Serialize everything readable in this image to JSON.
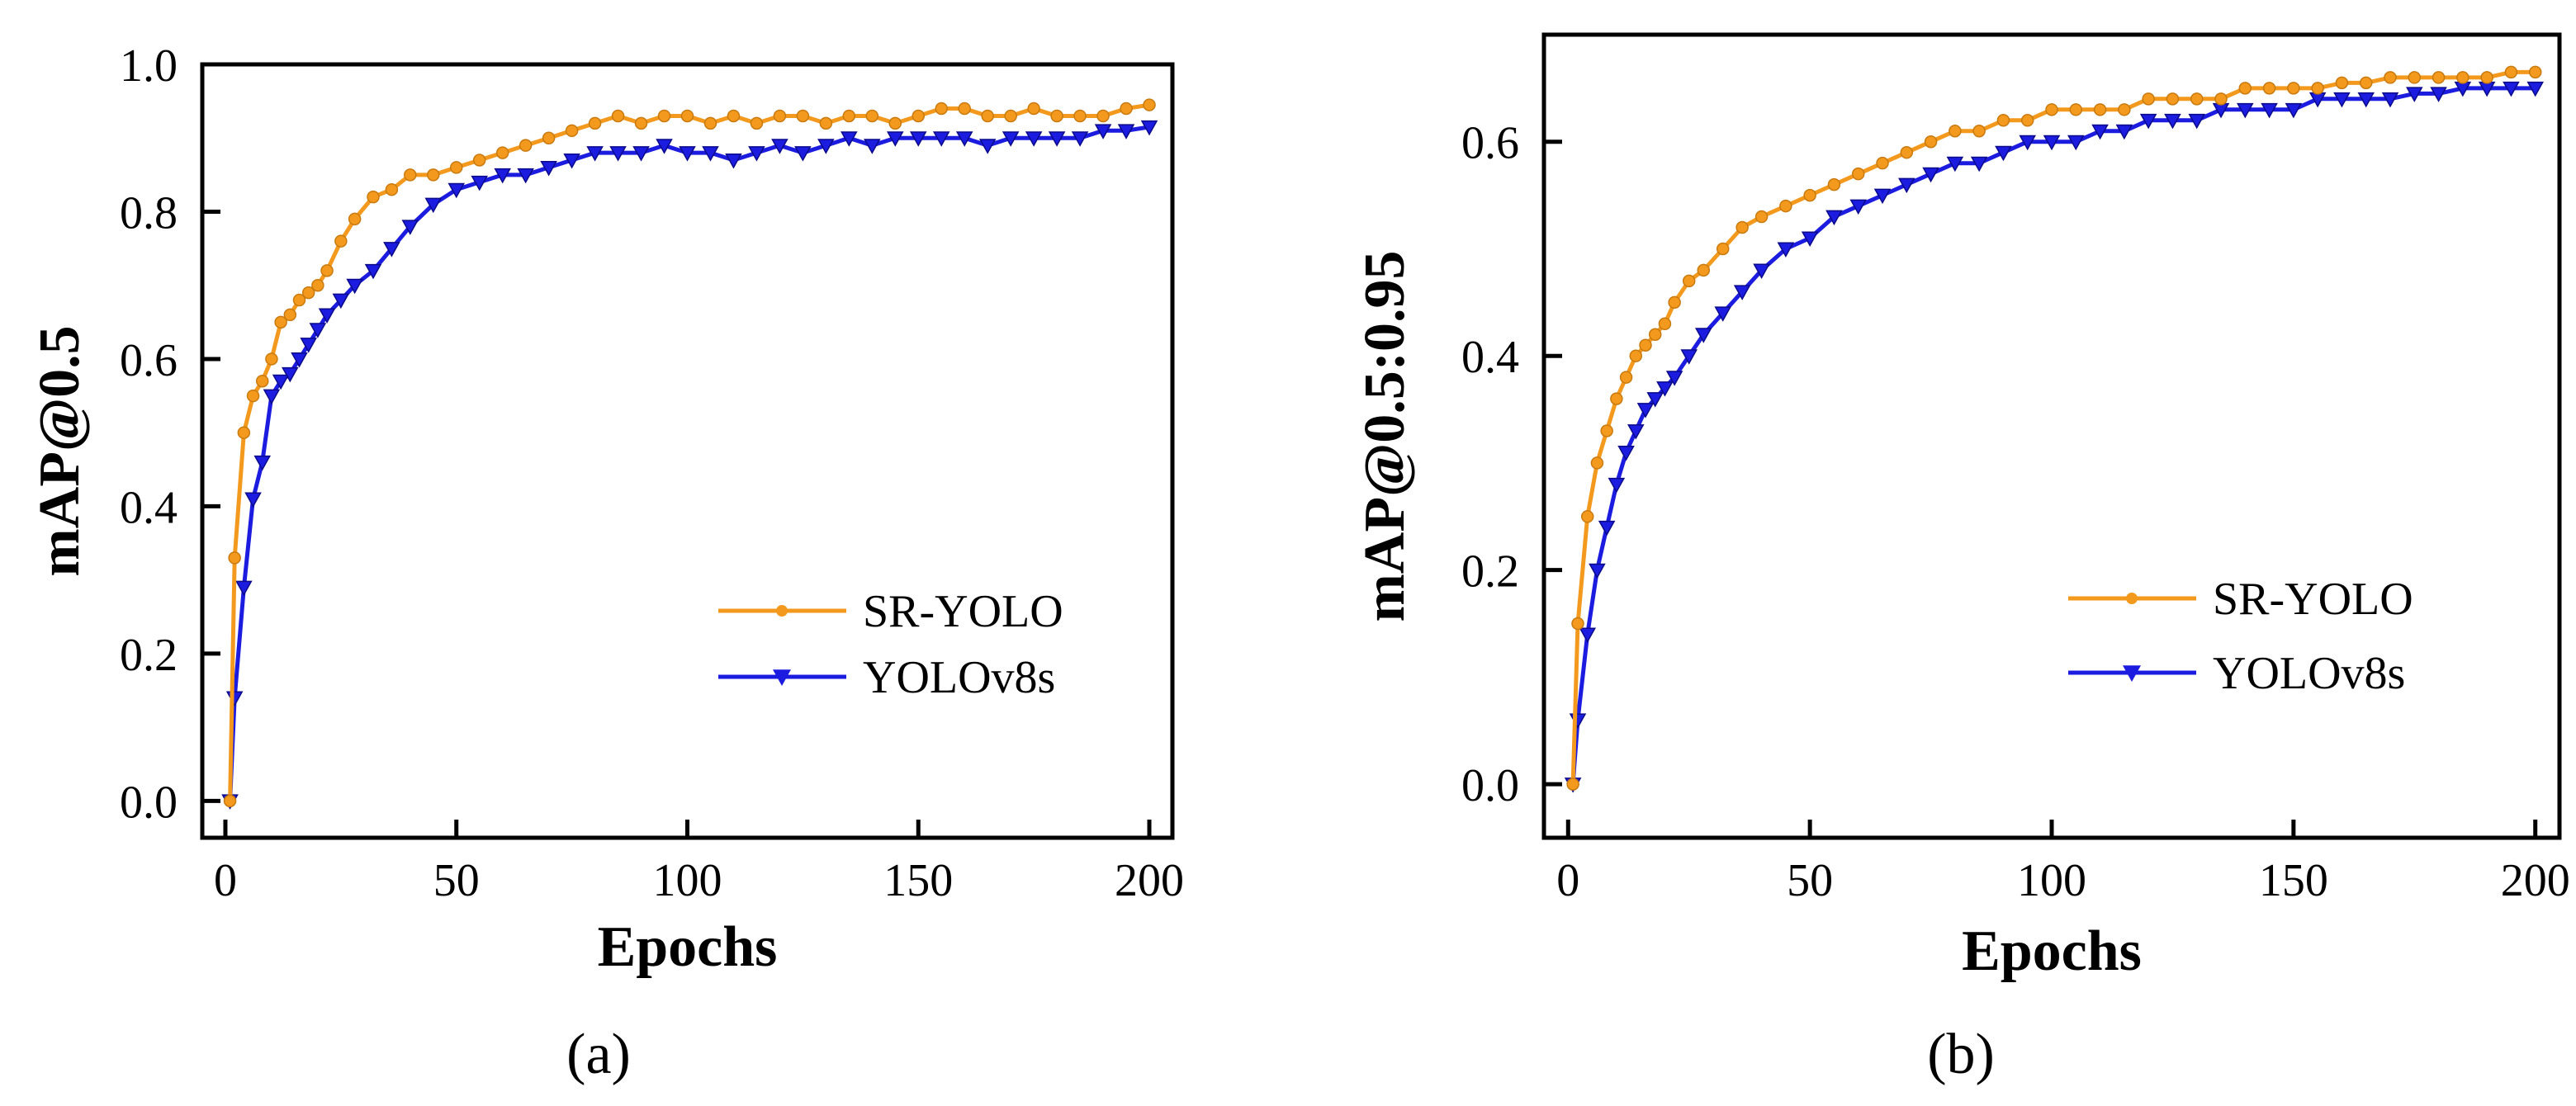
{
  "figure": {
    "panels": [
      {
        "label": "(a)"
      },
      {
        "label": "(b)"
      }
    ]
  },
  "chart_data": [
    {
      "type": "line",
      "panel": "(a)",
      "title": "",
      "xlabel": "Epochs",
      "ylabel": "mAP@0.5",
      "xlim": [
        -5,
        205
      ],
      "ylim": [
        -0.05,
        1.0
      ],
      "xticks": [
        0,
        50,
        100,
        150,
        200
      ],
      "xtick_labels": [
        "0",
        "50",
        "100",
        "150",
        "200"
      ],
      "yticks": [
        0.0,
        0.2,
        0.4,
        0.6,
        0.8,
        1.0
      ],
      "ytick_labels": [
        "0.0",
        "0.2",
        "0.4",
        "0.6",
        "0.8",
        "1.0"
      ],
      "grid": false,
      "legend_position": "center-right",
      "x": [
        1,
        2,
        4,
        6,
        8,
        10,
        12,
        14,
        16,
        18,
        20,
        22,
        25,
        28,
        32,
        36,
        40,
        45,
        50,
        55,
        60,
        65,
        70,
        75,
        80,
        85,
        90,
        95,
        100,
        105,
        110,
        115,
        120,
        125,
        130,
        135,
        140,
        145,
        150,
        155,
        160,
        165,
        170,
        175,
        180,
        185,
        190,
        195,
        200
      ],
      "series": [
        {
          "name": "SR-YOLO",
          "color": "#f39a1e",
          "marker": "circle",
          "values": [
            0.0,
            0.33,
            0.5,
            0.55,
            0.57,
            0.6,
            0.65,
            0.66,
            0.68,
            0.69,
            0.7,
            0.72,
            0.76,
            0.79,
            0.82,
            0.83,
            0.85,
            0.85,
            0.86,
            0.87,
            0.88,
            0.89,
            0.9,
            0.91,
            0.92,
            0.93,
            0.92,
            0.93,
            0.93,
            0.92,
            0.93,
            0.92,
            0.93,
            0.93,
            0.92,
            0.93,
            0.93,
            0.92,
            0.93,
            0.94,
            0.94,
            0.93,
            0.93,
            0.94,
            0.93,
            0.93,
            0.93,
            0.94,
            0.945
          ]
        },
        {
          "name": "YOLOv8s",
          "color": "#1c1ce0",
          "marker": "triangle-down",
          "values": [
            0.0,
            0.14,
            0.29,
            0.41,
            0.46,
            0.55,
            0.57,
            0.58,
            0.6,
            0.62,
            0.64,
            0.66,
            0.68,
            0.7,
            0.72,
            0.75,
            0.78,
            0.81,
            0.83,
            0.84,
            0.85,
            0.85,
            0.86,
            0.87,
            0.88,
            0.88,
            0.88,
            0.89,
            0.88,
            0.88,
            0.87,
            0.88,
            0.89,
            0.88,
            0.89,
            0.9,
            0.89,
            0.9,
            0.9,
            0.9,
            0.9,
            0.89,
            0.9,
            0.9,
            0.9,
            0.9,
            0.91,
            0.91,
            0.915
          ]
        }
      ]
    },
    {
      "type": "line",
      "panel": "(b)",
      "title": "",
      "xlabel": "Epochs",
      "ylabel": "mAP@0.5:0.95",
      "xlim": [
        -5,
        205
      ],
      "ylim": [
        -0.05,
        0.7
      ],
      "xticks": [
        0,
        50,
        100,
        150,
        200
      ],
      "xtick_labels": [
        "0",
        "50",
        "100",
        "150",
        "200"
      ],
      "yticks": [
        0.0,
        0.2,
        0.4,
        0.6
      ],
      "ytick_labels": [
        "0.0",
        "0.2",
        "0.4",
        "0.6"
      ],
      "grid": false,
      "legend_position": "center-right",
      "x": [
        1,
        2,
        4,
        6,
        8,
        10,
        12,
        14,
        16,
        18,
        20,
        22,
        25,
        28,
        32,
        36,
        40,
        45,
        50,
        55,
        60,
        65,
        70,
        75,
        80,
        85,
        90,
        95,
        100,
        105,
        110,
        115,
        120,
        125,
        130,
        135,
        140,
        145,
        150,
        155,
        160,
        165,
        170,
        175,
        180,
        185,
        190,
        195,
        200
      ],
      "series": [
        {
          "name": "SR-YOLO",
          "color": "#f39a1e",
          "marker": "circle",
          "values": [
            0.0,
            0.15,
            0.25,
            0.3,
            0.33,
            0.36,
            0.38,
            0.4,
            0.41,
            0.42,
            0.43,
            0.45,
            0.47,
            0.48,
            0.5,
            0.52,
            0.53,
            0.54,
            0.55,
            0.56,
            0.57,
            0.58,
            0.59,
            0.6,
            0.61,
            0.61,
            0.62,
            0.62,
            0.63,
            0.63,
            0.63,
            0.63,
            0.64,
            0.64,
            0.64,
            0.64,
            0.65,
            0.65,
            0.65,
            0.65,
            0.655,
            0.655,
            0.66,
            0.66,
            0.66,
            0.66,
            0.66,
            0.665,
            0.665
          ]
        },
        {
          "name": "YOLOv8s",
          "color": "#1c1ce0",
          "marker": "triangle-down",
          "values": [
            0.0,
            0.06,
            0.14,
            0.2,
            0.24,
            0.28,
            0.31,
            0.33,
            0.35,
            0.36,
            0.37,
            0.38,
            0.4,
            0.42,
            0.44,
            0.46,
            0.48,
            0.5,
            0.51,
            0.53,
            0.54,
            0.55,
            0.56,
            0.57,
            0.58,
            0.58,
            0.59,
            0.6,
            0.6,
            0.6,
            0.61,
            0.61,
            0.62,
            0.62,
            0.62,
            0.63,
            0.63,
            0.63,
            0.63,
            0.64,
            0.64,
            0.64,
            0.64,
            0.645,
            0.645,
            0.65,
            0.65,
            0.65,
            0.65
          ]
        }
      ]
    }
  ]
}
